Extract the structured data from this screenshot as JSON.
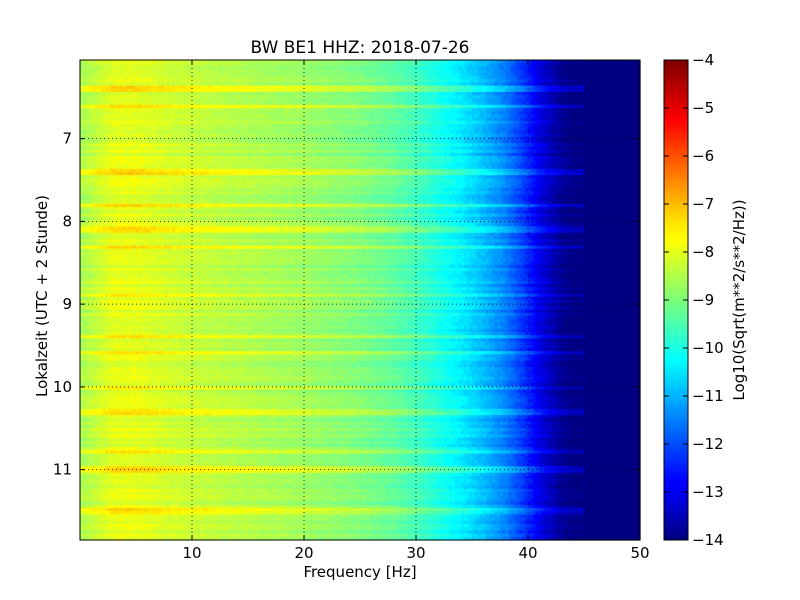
{
  "chart_data": {
    "type": "heatmap",
    "title": "BW BE1 HHZ: 2018-07-26",
    "xlabel": "Frequency [Hz]",
    "ylabel": "Lokalzeit (UTC + 2 Stunde)",
    "colorbar_label": "Log10(Sqrt(m**2/s**2/Hz))",
    "xlim": [
      0,
      50
    ],
    "ylim": [
      6.05,
      11.85
    ],
    "y_inverted": true,
    "x_ticks": [
      10,
      20,
      30,
      40,
      50
    ],
    "y_ticks": [
      7,
      8,
      9,
      10,
      11
    ],
    "x_tick_labels": [
      "10",
      "20",
      "30",
      "40",
      "50"
    ],
    "y_tick_labels": [
      "7",
      "8",
      "9",
      "10",
      "11"
    ],
    "clim": [
      -14,
      -4
    ],
    "colorbar_ticks": [
      -4,
      -5,
      -6,
      -7,
      -8,
      -9,
      -10,
      -11,
      -12,
      -13,
      -14
    ],
    "colorbar_tick_labels": [
      "−4",
      "−5",
      "−6",
      "−7",
      "−8",
      "−9",
      "−10",
      "−11",
      "−12",
      "−13",
      "−14"
    ],
    "colormap": "jet",
    "grid": true,
    "frequency_profile": {
      "frequency_hz": [
        0,
        1,
        2,
        3,
        5,
        8,
        10,
        15,
        20,
        25,
        28,
        30,
        32,
        34,
        36,
        38,
        40,
        41,
        42,
        43,
        44,
        45,
        50
      ],
      "value": [
        -8.6,
        -8.4,
        -8.2,
        -8.0,
        -8.0,
        -8.2,
        -8.3,
        -8.5,
        -8.7,
        -9.0,
        -9.3,
        -9.6,
        -10.0,
        -10.4,
        -10.9,
        -11.5,
        -12.4,
        -13.0,
        -13.4,
        -13.8,
        -14.0,
        -14.0,
        -14.0
      ]
    },
    "bright_bands_hours": [
      6.4,
      6.6,
      7.4,
      7.8,
      8.1,
      8.3,
      8.9,
      9.4,
      9.6,
      10.0,
      10.3,
      10.8,
      11.0,
      11.5
    ],
    "time_bin_count": 150,
    "frequency_bin_count": 200
  }
}
